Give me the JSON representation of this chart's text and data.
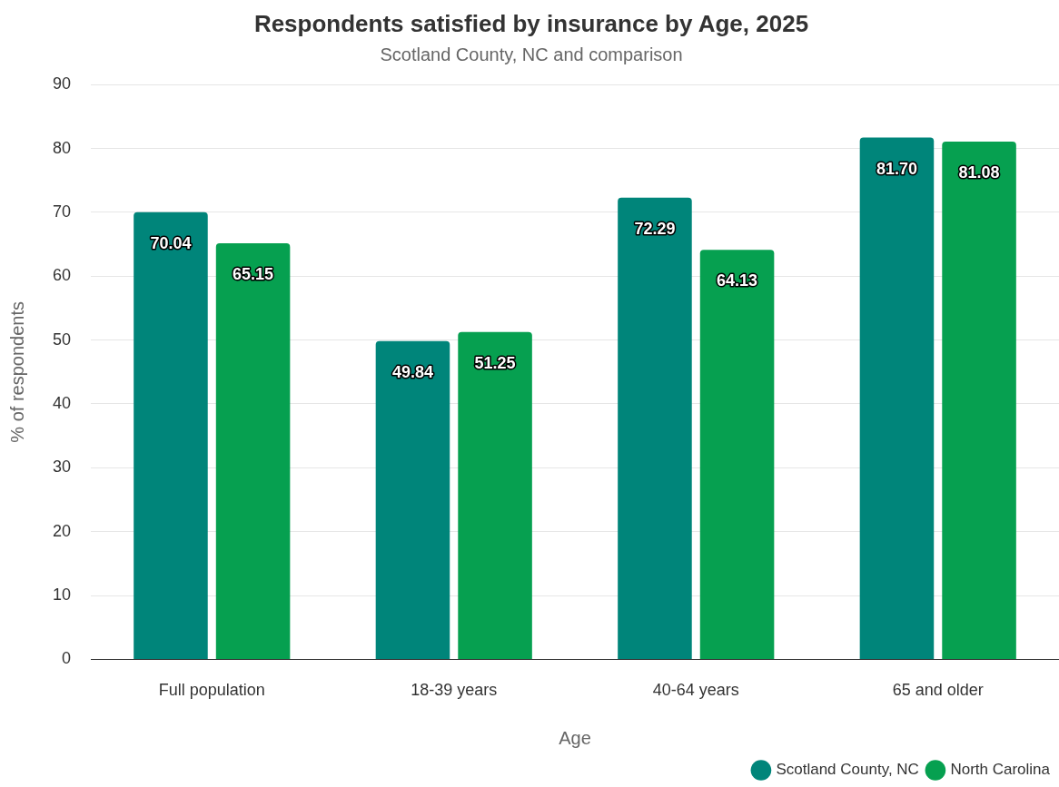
{
  "chart_data": {
    "type": "bar",
    "title": "Respondents satisfied by insurance by Age, 2025",
    "subtitle": "Scotland County, NC and comparison",
    "xlabel": "Age",
    "ylabel": "% of respondents",
    "categories": [
      "Full population",
      "18-39 years",
      "40-64 years",
      "65 and older"
    ],
    "series": [
      {
        "name": "Scotland County, NC",
        "color": "#00857a",
        "values": [
          70.04,
          49.84,
          72.29,
          81.7
        ],
        "value_labels": [
          "70.04",
          "49.84",
          "72.29",
          "81.70"
        ]
      },
      {
        "name": "North Carolina",
        "color": "#06a050",
        "values": [
          65.15,
          51.25,
          64.13,
          81.08
        ],
        "value_labels": [
          "65.15",
          "51.25",
          "64.13",
          "81.08"
        ]
      }
    ],
    "ylim": [
      0,
      90
    ],
    "yticks": [
      0,
      10,
      20,
      30,
      40,
      50,
      60,
      70,
      80,
      90
    ],
    "grid": "y",
    "legend": "bottom right"
  }
}
